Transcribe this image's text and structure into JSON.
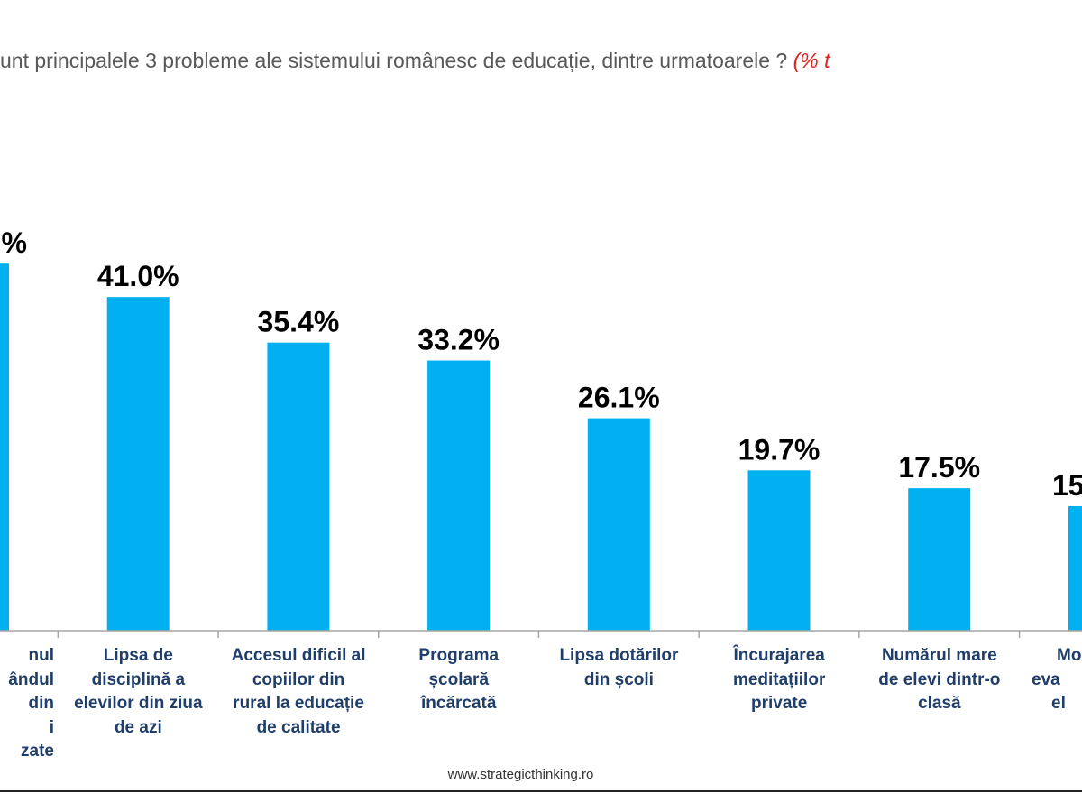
{
  "title": {
    "text": "unt principalele 3 probleme ale sistemului românesc de educație, dintre urmatoarele ? ",
    "note": "(% t"
  },
  "footer": "www.strategicthinking.ro",
  "colors": {
    "bar": "#00b0f0",
    "value_label": "#000000",
    "category_label": "#1f3e6a",
    "title": "#595959",
    "title_note": "#e3201b"
  },
  "chart_data": {
    "type": "bar",
    "title": "",
    "xlabel": "",
    "ylabel": "",
    "ylim": [
      0,
      46
    ],
    "grid": false,
    "categories": [
      [
        "nul",
        "ândul",
        "din",
        "i",
        "zate"
      ],
      [
        "Lipsa de",
        "disciplină a",
        "elevilor din ziua",
        "de azi"
      ],
      [
        "Accesul dificil al",
        "copiilor din",
        "rural la educație",
        "de calitate"
      ],
      [
        "Programa",
        "școlară",
        "încărcată"
      ],
      [
        "Lipsa dotărilor",
        "din școli"
      ],
      [
        "Încurajarea",
        "meditațiilor",
        "private"
      ],
      [
        "Numărul mare",
        "de elevi dintr-o",
        "clasă"
      ],
      [
        "Mo",
        "eva",
        "el"
      ]
    ],
    "values": [
      45.1,
      41.0,
      35.4,
      33.2,
      26.1,
      19.7,
      17.5,
      15.3
    ],
    "value_labels": [
      "%",
      "41.0%",
      "35.4%",
      "33.2%",
      "26.1%",
      "19.7%",
      "17.5%",
      "15"
    ]
  }
}
